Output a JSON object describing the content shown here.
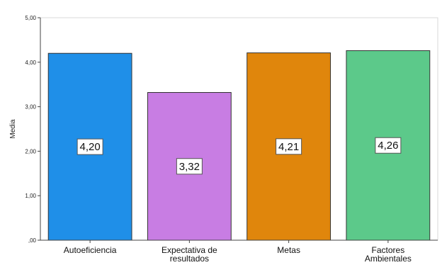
{
  "chart_data": {
    "type": "bar",
    "categories": [
      [
        "Autoeficiencia"
      ],
      [
        "Expectativa de",
        "resultados"
      ],
      [
        "Metas"
      ],
      [
        "Factores",
        "Ambientales"
      ]
    ],
    "values": [
      4.2,
      3.32,
      4.21,
      4.26
    ],
    "data_labels": [
      "4,20",
      "3,32",
      "4,21",
      "4,26"
    ],
    "colors": [
      "#1f8fe8",
      "#c87de3",
      "#e0860c",
      "#5cc98a"
    ],
    "ylabel": "Media",
    "xlabel": "",
    "title": "",
    "ylim": [
      0,
      5
    ],
    "yticks": [
      {
        "value": 0,
        "label": ",00"
      },
      {
        "value": 1,
        "label": "1,00"
      },
      {
        "value": 2,
        "label": "2,00"
      },
      {
        "value": 3,
        "label": "3,00"
      },
      {
        "value": 4,
        "label": "4,00"
      },
      {
        "value": 5,
        "label": "5,00"
      }
    ],
    "grid": false,
    "legend": "none"
  }
}
